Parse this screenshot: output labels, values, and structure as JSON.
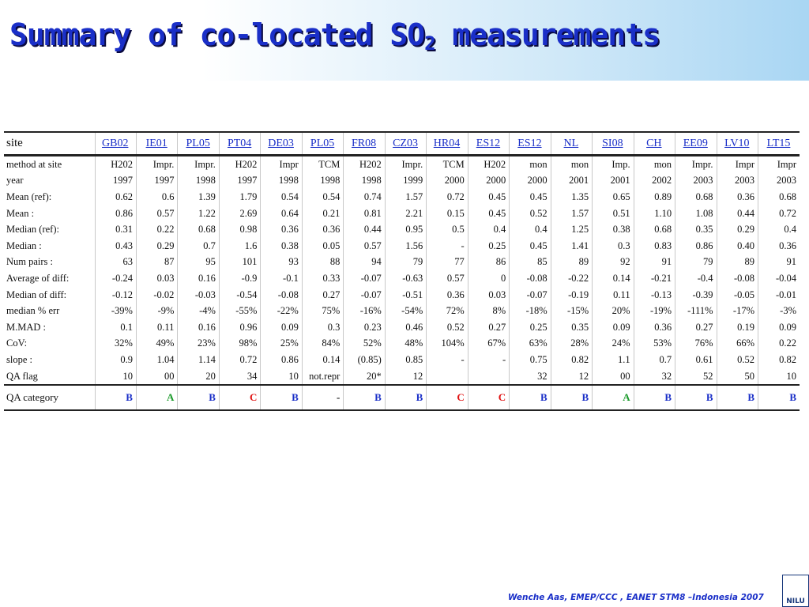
{
  "title": {
    "before": "Summary of co-located SO",
    "sub": "2",
    "after": " measurements"
  },
  "table": {
    "header": [
      "site",
      "GB02",
      "IE01",
      "PL05",
      "PT04",
      "DE03",
      "PL05",
      "FR08",
      "CZ03",
      "HR04",
      "ES12",
      "ES12",
      "NL",
      "SI08",
      "CH",
      "EE09",
      "LV10",
      "LT15"
    ],
    "rows": [
      [
        "method at site",
        "H202",
        "Impr.",
        "Impr.",
        "H202",
        "Impr",
        "TCM",
        "H202",
        "Impr.",
        "TCM",
        "H202",
        "mon",
        "mon",
        "Imp.",
        "mon",
        "Impr.",
        "Impr",
        "Impr"
      ],
      [
        "year",
        "1997",
        "1997",
        "1998",
        "1997",
        "1998",
        "1998",
        "1998",
        "1999",
        "2000",
        "2000",
        "2000",
        "2001",
        "2001",
        "2002",
        "2003",
        "2003",
        "2003"
      ],
      [
        "Mean (ref):",
        "0.62",
        "0.6",
        "1.39",
        "1.79",
        "0.54",
        "0.54",
        "0.74",
        "1.57",
        "0.72",
        "0.45",
        "0.45",
        "1.35",
        "0.65",
        "0.89",
        "0.68",
        "0.36",
        "0.68"
      ],
      [
        "Mean :",
        "0.86",
        "0.57",
        "1.22",
        "2.69",
        "0.64",
        "0.21",
        "0.81",
        "2.21",
        "0.15",
        "0.45",
        "0.52",
        "1.57",
        "0.51",
        "1.10",
        "1.08",
        "0.44",
        "0.72"
      ],
      [
        "Median (ref):",
        "0.31",
        "0.22",
        "0.68",
        "0.98",
        "0.36",
        "0.36",
        "0.44",
        "0.95",
        "0.5",
        "0.4",
        "0.4",
        "1.25",
        "0.38",
        "0.68",
        "0.35",
        "0.29",
        "0.4"
      ],
      [
        "Median :",
        "0.43",
        "0.29",
        "0.7",
        "1.6",
        "0.38",
        "0.05",
        "0.57",
        "1.56",
        "-",
        "0.25",
        "0.45",
        "1.41",
        "0.3",
        "0.83",
        "0.86",
        "0.40",
        "0.36"
      ],
      [
        "Num pairs :",
        "63",
        "87",
        "95",
        "101",
        "93",
        "88",
        "94",
        "79",
        "77",
        "86",
        "85",
        "89",
        "92",
        "91",
        "79",
        "89",
        "91"
      ],
      [
        "Average of diff:",
        "-0.24",
        "0.03",
        "0.16",
        "-0.9",
        "-0.1",
        "0.33",
        "-0.07",
        "-0.63",
        "0.57",
        "0",
        "-0.08",
        "-0.22",
        "0.14",
        "-0.21",
        "-0.4",
        "-0.08",
        "-0.04"
      ],
      [
        "Median of diff:",
        "-0.12",
        "-0.02",
        "-0.03",
        "-0.54",
        "-0.08",
        "0.27",
        "-0.07",
        "-0.51",
        "0.36",
        "0.03",
        "-0.07",
        "-0.19",
        "0.11",
        "-0.13",
        "-0.39",
        "-0.05",
        "-0.01"
      ],
      [
        "median % err",
        "-39%",
        "-9%",
        "-4%",
        "-55%",
        "-22%",
        "75%",
        "-16%",
        "-54%",
        "72%",
        "8%",
        "-18%",
        "-15%",
        "20%",
        "-19%",
        "-111%",
        "-17%",
        "-3%"
      ],
      [
        "M.MAD :",
        "0.1",
        "0.11",
        "0.16",
        "0.96",
        "0.09",
        "0.3",
        "0.23",
        "0.46",
        "0.52",
        "0.27",
        "0.25",
        "0.35",
        "0.09",
        "0.36",
        "0.27",
        "0.19",
        "0.09"
      ],
      [
        "CoV:",
        "32%",
        "49%",
        "23%",
        "98%",
        "25%",
        "84%",
        "52%",
        "48%",
        "104%",
        "67%",
        "63%",
        "28%",
        "24%",
        "53%",
        "76%",
        "66%",
        "0.22"
      ],
      [
        "slope :",
        "0.9",
        "1.04",
        "1.14",
        "0.72",
        "0.86",
        "0.14",
        "(0.85)",
        "0.85",
        "-",
        "-",
        "0.75",
        "0.82",
        "1.1",
        "0.7",
        "0.61",
        "0.52",
        "0.82"
      ],
      [
        "QA flag",
        "10",
        "00",
        "20",
        "34",
        "10",
        "not.repr",
        "20*",
        "12",
        null,
        null,
        "32",
        "12",
        "00",
        "32",
        "52",
        "50",
        "10"
      ],
      [
        "QA category",
        "B",
        "A",
        "B",
        "C",
        "B",
        "-",
        "B",
        "B",
        "C",
        "C",
        "B",
        "B",
        "A",
        "B",
        "B",
        "B",
        "B"
      ]
    ],
    "category_colors": {
      "A": "#1a9a2a",
      "B": "#1a2fc8",
      "C": "#e01010",
      "-": "#111111"
    }
  },
  "footer": "Wenche Aas, EMEP/CCC , EANET STM8 –Indonesia 2007",
  "logo": "NILU"
}
